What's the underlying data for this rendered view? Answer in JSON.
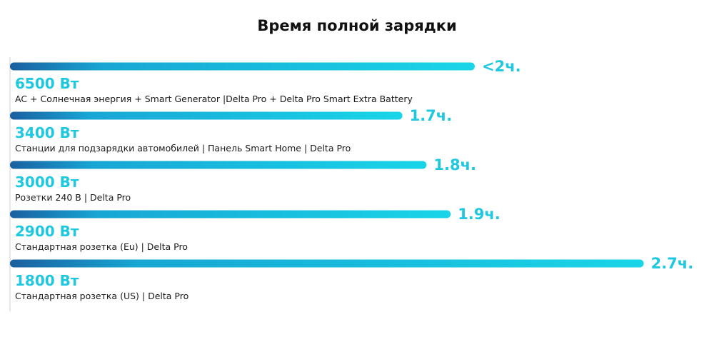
{
  "chart_data": {
    "type": "bar",
    "orientation": "horizontal",
    "title": "Время полной зарядки",
    "unit": "ч.",
    "xlim": [
      0,
      2.8
    ],
    "items": [
      {
        "power": "6500 Вт",
        "description": "AC + Солнечная энергия + Smart Generator |Delta Pro + Delta Pro Smart Extra Battery",
        "label": "<2ч.",
        "value": 2.0
      },
      {
        "power": "3400 Вт",
        "description": "Станции для подзарядки автомобилей | Панель Smart Home | Delta Pro",
        "label": "1.7ч.",
        "value": 1.7
      },
      {
        "power": "3000 Вт",
        "description": "Розетки 240 В | Delta Pro",
        "label": "1.8ч.",
        "value": 1.8
      },
      {
        "power": "2900 Вт",
        "description": "Стандартная розетка (Eu)  | Delta Pro",
        "label": "1.9ч.",
        "value": 1.9
      },
      {
        "power": "1800 Вт",
        "description": "Стандартная розетка (US)  | Delta Pro",
        "label": "2.7ч.",
        "value": 2.7
      }
    ]
  },
  "colors": {
    "bar_start": "#1a5fa0",
    "bar_end": "#19d5e8",
    "accent_text": "#1ec8e0",
    "axis": "#cccccc",
    "title": "#111111"
  }
}
